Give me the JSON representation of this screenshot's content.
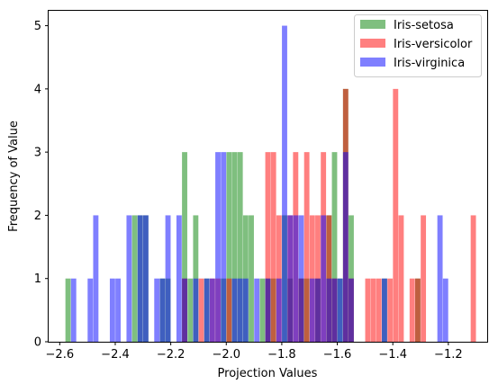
{
  "chart_data": {
    "type": "histogram",
    "xlabel": "Projection Values",
    "ylabel": "Frequency of Value",
    "xlim": [
      -2.64,
      -1.06
    ],
    "ylim": [
      0,
      5.25
    ],
    "xticks": [
      -2.6,
      -2.4,
      -2.2,
      -2.0,
      -1.8,
      -1.6,
      -1.4,
      -1.2
    ],
    "xtick_labels": [
      "−2.6",
      "−2.4",
      "−2.2",
      "−2.0",
      "−1.8",
      "−1.6",
      "−1.4",
      "−1.2"
    ],
    "yticks": [
      0,
      1,
      2,
      3,
      4,
      5
    ],
    "ytick_labels": [
      "0",
      "1",
      "2",
      "3",
      "4",
      "5"
    ],
    "grid": false,
    "legend_position": "top-right",
    "bar_alpha": 0.5,
    "series": [
      {
        "name": "Iris-setosa",
        "color": "#008000",
        "bin_width": 0.019,
        "bins": [
          [
            -2.57,
            1
          ],
          [
            -2.33,
            2
          ],
          [
            -2.31,
            2
          ],
          [
            -2.29,
            2
          ],
          [
            -2.23,
            1
          ],
          [
            -2.21,
            1
          ],
          [
            -2.15,
            3
          ],
          [
            -2.13,
            1
          ],
          [
            -2.11,
            2
          ],
          [
            -2.07,
            1
          ],
          [
            -2.01,
            1
          ],
          [
            -1.99,
            3
          ],
          [
            -1.97,
            3
          ],
          [
            -1.95,
            3
          ],
          [
            -1.93,
            2
          ],
          [
            -1.91,
            2
          ],
          [
            -1.87,
            1
          ],
          [
            -1.85,
            1
          ],
          [
            -1.83,
            1
          ],
          [
            -1.79,
            2
          ],
          [
            -1.77,
            1
          ],
          [
            -1.73,
            1
          ],
          [
            -1.71,
            1
          ],
          [
            -1.67,
            1
          ],
          [
            -1.63,
            2
          ],
          [
            -1.61,
            3
          ],
          [
            -1.59,
            1
          ],
          [
            -1.57,
            4
          ],
          [
            -1.55,
            2
          ],
          [
            -1.43,
            1
          ],
          [
            -1.31,
            1
          ]
        ]
      },
      {
        "name": "Iris-versicolor",
        "color": "#ff0000",
        "bin_width": 0.019,
        "bins": [
          [
            -2.15,
            1
          ],
          [
            -2.09,
            1
          ],
          [
            -2.05,
            1
          ],
          [
            -2.03,
            1
          ],
          [
            -1.99,
            1
          ],
          [
            -1.85,
            3
          ],
          [
            -1.83,
            3
          ],
          [
            -1.81,
            2
          ],
          [
            -1.77,
            2
          ],
          [
            -1.75,
            3
          ],
          [
            -1.73,
            1
          ],
          [
            -1.71,
            3
          ],
          [
            -1.69,
            2
          ],
          [
            -1.67,
            2
          ],
          [
            -1.65,
            3
          ],
          [
            -1.63,
            2
          ],
          [
            -1.61,
            1
          ],
          [
            -1.57,
            4
          ],
          [
            -1.55,
            1
          ],
          [
            -1.49,
            1
          ],
          [
            -1.47,
            1
          ],
          [
            -1.45,
            1
          ],
          [
            -1.41,
            1
          ],
          [
            -1.39,
            4
          ],
          [
            -1.37,
            2
          ],
          [
            -1.33,
            1
          ],
          [
            -1.31,
            1
          ],
          [
            -1.29,
            2
          ],
          [
            -1.11,
            2
          ]
        ]
      },
      {
        "name": "Iris-virginica",
        "color": "#0000ff",
        "bin_width": 0.019,
        "bins": [
          [
            -2.55,
            1
          ],
          [
            -2.49,
            1
          ],
          [
            -2.47,
            2
          ],
          [
            -2.41,
            1
          ],
          [
            -2.39,
            1
          ],
          [
            -2.35,
            2
          ],
          [
            -2.31,
            2
          ],
          [
            -2.29,
            2
          ],
          [
            -2.25,
            1
          ],
          [
            -2.23,
            1
          ],
          [
            -2.21,
            2
          ],
          [
            -2.17,
            2
          ],
          [
            -2.15,
            1
          ],
          [
            -2.11,
            1
          ],
          [
            -2.07,
            1
          ],
          [
            -2.05,
            1
          ],
          [
            -2.03,
            3
          ],
          [
            -2.01,
            3
          ],
          [
            -1.97,
            1
          ],
          [
            -1.95,
            1
          ],
          [
            -1.93,
            1
          ],
          [
            -1.89,
            1
          ],
          [
            -1.85,
            1
          ],
          [
            -1.81,
            1
          ],
          [
            -1.79,
            5
          ],
          [
            -1.77,
            2
          ],
          [
            -1.75,
            2
          ],
          [
            -1.73,
            2
          ],
          [
            -1.69,
            1
          ],
          [
            -1.67,
            1
          ],
          [
            -1.65,
            2
          ],
          [
            -1.63,
            1
          ],
          [
            -1.61,
            1
          ],
          [
            -1.59,
            1
          ],
          [
            -1.57,
            3
          ],
          [
            -1.55,
            1
          ],
          [
            -1.43,
            1
          ],
          [
            -1.23,
            2
          ],
          [
            -1.21,
            1
          ]
        ]
      }
    ]
  }
}
